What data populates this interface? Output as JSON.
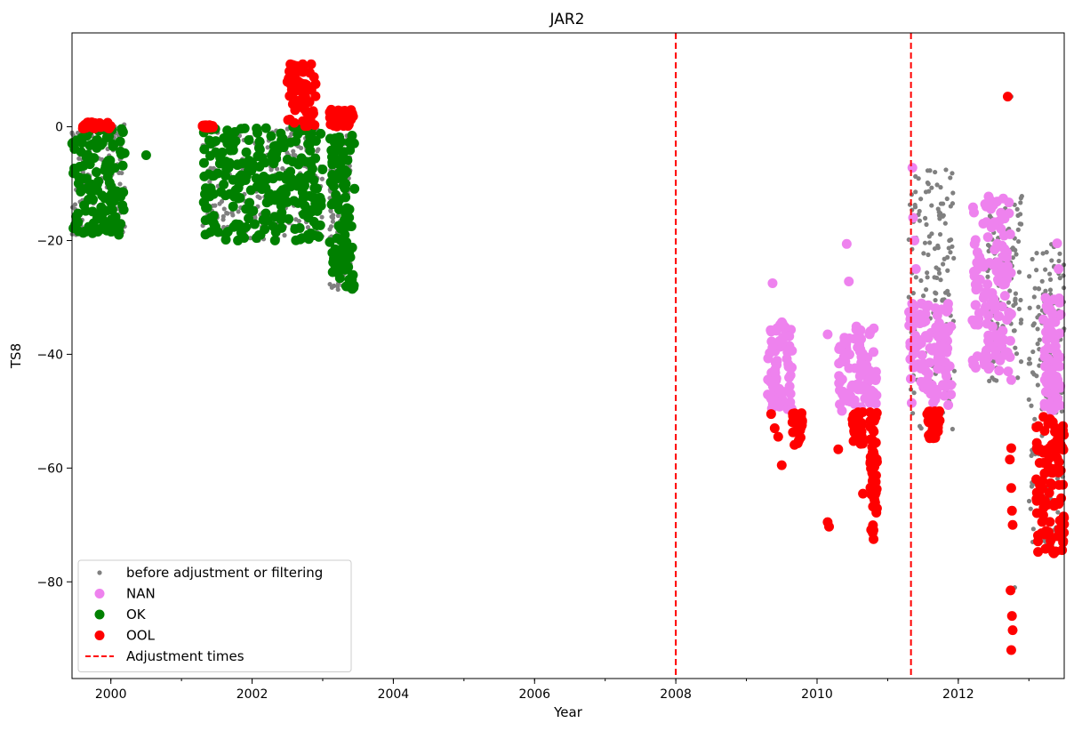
{
  "chart_data": {
    "type": "scatter",
    "title": "JAR2",
    "xlabel": "Year",
    "ylabel": "TS8",
    "xlim": [
      1999.45,
      2013.5
    ],
    "ylim": [
      -97,
      16.5
    ],
    "xticks": [
      {
        "value": 2000,
        "label": "2000"
      },
      {
        "value": 2002,
        "label": "2002"
      },
      {
        "value": 2004,
        "label": "2004"
      },
      {
        "value": 2006,
        "label": "2006"
      },
      {
        "value": 2008,
        "label": "2008"
      },
      {
        "value": 2010,
        "label": "2010"
      },
      {
        "value": 2012,
        "label": "2012"
      }
    ],
    "yticks": [
      {
        "value": 0,
        "label": "0"
      },
      {
        "value": -20,
        "label": "−20"
      },
      {
        "value": -40,
        "label": "−40"
      },
      {
        "value": -60,
        "label": "−60"
      },
      {
        "value": -80,
        "label": "−80"
      }
    ],
    "adjustment_times": [
      2008.0,
      2011.33
    ],
    "legend_position": "lower-left",
    "grid": false,
    "series": [
      {
        "name": "before adjustment or filtering",
        "color": "#808080",
        "marker": "small-dot",
        "clusters": [
          {
            "x": [
              1999.45,
              2000.2
            ],
            "y": [
              -19,
              0.5
            ]
          },
          {
            "x": [
              2001.3,
              2003.0
            ],
            "y": [
              -20,
              0
            ]
          },
          {
            "x": [
              2003.1,
              2003.4
            ],
            "y": [
              -29,
              3
            ]
          },
          {
            "x": [
              2011.3,
              2011.95
            ],
            "y": [
              -55,
              -7
            ]
          },
          {
            "x": [
              2012.4,
              2012.9
            ],
            "y": [
              -45,
              -12
            ]
          },
          {
            "x": [
              2013.0,
              2013.5
            ],
            "y": [
              -75,
              -20
            ]
          }
        ],
        "points": [
          [
            2012.75,
            5.3
          ],
          [
            2012.77,
            -92
          ],
          [
            2012.79,
            -86
          ],
          [
            2012.8,
            -81
          ]
        ]
      },
      {
        "name": "NAN",
        "color": "#ee82ee",
        "marker": "dot",
        "clusters": [
          {
            "x": [
              2009.3,
              2009.65
            ],
            "y": [
              -50,
              -34
            ]
          },
          {
            "x": [
              2010.3,
              2010.85
            ],
            "y": [
              -50,
              -35
            ]
          },
          {
            "x": [
              2011.3,
              2011.9
            ],
            "y": [
              -49,
              -31
            ]
          },
          {
            "x": [
              2012.2,
              2012.75
            ],
            "y": [
              -43,
              -12
            ]
          },
          {
            "x": [
              2013.2,
              2013.45
            ],
            "y": [
              -50,
              -30
            ]
          }
        ],
        "points": [
          [
            2009.37,
            -27.5
          ],
          [
            2010.15,
            -36.5
          ],
          [
            2010.42,
            -20.6
          ],
          [
            2010.45,
            -27.2
          ],
          [
            2011.35,
            -7.2
          ],
          [
            2011.36,
            -16
          ],
          [
            2011.38,
            -20
          ],
          [
            2011.4,
            -25
          ],
          [
            2012.7,
            -24.5
          ],
          [
            2012.75,
            -44.5
          ],
          [
            2013.4,
            -20.5
          ],
          [
            2013.42,
            -25
          ],
          [
            2013.45,
            -33
          ]
        ]
      },
      {
        "name": "OK",
        "color": "#008000",
        "marker": "dot",
        "clusters": [
          {
            "x": [
              1999.45,
              2000.2
            ],
            "y": [
              -19,
              0
            ]
          },
          {
            "x": [
              2001.3,
              2003.0
            ],
            "y": [
              -20,
              0
            ]
          },
          {
            "x": [
              2003.1,
              2003.45
            ],
            "y": [
              -29,
              -1
            ]
          }
        ],
        "points": [
          [
            2000.5,
            -5
          ]
        ]
      },
      {
        "name": "OOL",
        "color": "#ff0000",
        "marker": "dot",
        "clusters": [
          {
            "x": [
              1999.6,
              2000.0
            ],
            "y": [
              -0.3,
              0.8
            ]
          },
          {
            "x": [
              2001.3,
              2001.45
            ],
            "y": [
              -0.3,
              0.3
            ]
          },
          {
            "x": [
              2002.5,
              2002.9
            ],
            "y": [
              0,
              11
            ]
          },
          {
            "x": [
              2003.1,
              2003.45
            ],
            "y": [
              0,
              3
            ]
          },
          {
            "x": [
              2009.65,
              2009.8
            ],
            "y": [
              -56,
              -50
            ]
          },
          {
            "x": [
              2010.5,
              2010.65
            ],
            "y": [
              -56,
              -50
            ]
          },
          {
            "x": [
              2010.75,
              2010.85
            ],
            "y": [
              -72,
              -50
            ]
          },
          {
            "x": [
              2011.55,
              2011.75
            ],
            "y": [
              -55,
              -50
            ]
          },
          {
            "x": [
              2013.1,
              2013.5
            ],
            "y": [
              -75,
              -51
            ]
          }
        ],
        "points": [
          [
            2009.35,
            -50.5
          ],
          [
            2009.4,
            -53
          ],
          [
            2009.45,
            -54.5
          ],
          [
            2009.5,
            -59.5
          ],
          [
            2010.15,
            -69.5
          ],
          [
            2010.17,
            -70.3
          ],
          [
            2010.3,
            -56.7
          ],
          [
            2010.65,
            -64.5
          ],
          [
            2010.8,
            -72.5
          ],
          [
            2012.7,
            5.3
          ],
          [
            2012.75,
            -56.5
          ],
          [
            2012.73,
            -58.5
          ],
          [
            2012.75,
            -63.5
          ],
          [
            2012.76,
            -67.5
          ],
          [
            2012.77,
            -70
          ],
          [
            2012.74,
            -81.5
          ],
          [
            2012.76,
            -86
          ],
          [
            2012.77,
            -88.5
          ],
          [
            2012.75,
            -92
          ]
        ]
      },
      {
        "name": "Adjustment times",
        "color": "#ff0000",
        "marker": "dashed-line"
      }
    ]
  }
}
